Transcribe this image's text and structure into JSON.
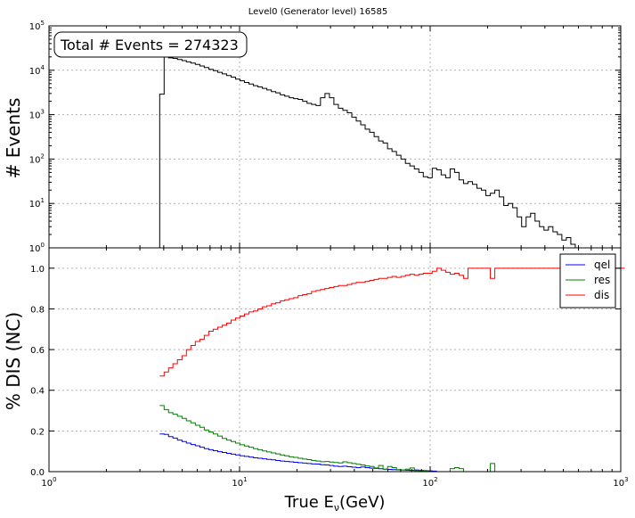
{
  "figure": {
    "title": "Level0 (Generator level) 16585",
    "annotation": "Total # Events = 274323"
  },
  "chart_data": [
    {
      "type": "line",
      "drawstyle": "steps",
      "xscale": "log",
      "yscale": "log",
      "xlim": [
        1,
        1000
      ],
      "ylim": [
        1,
        100000
      ],
      "grid": true,
      "xlabel": "",
      "ylabel": "# Events",
      "ytick_labels": [
        "10^0",
        "10^1",
        "10^2",
        "10^3",
        "10^4",
        "10^5"
      ],
      "series": [
        {
          "color": "#000000",
          "x": [
            3.81,
            4.02,
            4.24,
            4.47,
            4.72,
            4.99,
            5.26,
            5.55,
            5.86,
            6.19,
            6.53,
            6.89,
            7.27,
            7.68,
            8.11,
            8.55,
            9.03,
            9.53,
            10.06,
            10.61,
            11.2,
            11.83,
            12.48,
            13.17,
            13.9,
            14.68,
            15.49,
            16.35,
            17.26,
            18.22,
            19.22,
            20.29,
            21.42,
            22.6,
            23.86,
            25.18,
            26.58,
            28.05,
            29.61,
            31.25,
            32.99,
            34.82,
            36.75,
            38.79,
            40.94,
            43.21,
            45.61,
            48.14,
            50.81,
            53.63,
            56.61,
            59.75,
            63.06,
            66.56,
            70.26,
            74.15,
            78.27,
            82.61,
            87.19,
            92.03,
            97.14,
            102.53,
            108.22,
            114.22,
            120.56,
            127.25,
            134.31,
            141.76,
            149.63,
            157.93,
            166.7,
            175.95,
            185.71,
            196.01,
            206.89,
            218.37,
            230.49,
            243.28,
            256.78,
            271.02,
            286.06,
            301.94,
            318.69,
            336.37,
            355.04,
            374.74,
            395.54,
            417.48,
            440.65,
            465.1,
            490.91,
            518.15,
            546.9,
            577.25
          ],
          "y": [
            2900,
            21000,
            19000,
            18500,
            17500,
            16500,
            15500,
            14500,
            13500,
            12500,
            11500,
            10500,
            9800,
            9000,
            8300,
            7600,
            7000,
            6300,
            5800,
            5300,
            4900,
            4500,
            4200,
            3900,
            3600,
            3300,
            3100,
            2800,
            2600,
            2400,
            2300,
            2200,
            2000,
            1800,
            1700,
            1600,
            2400,
            3000,
            2400,
            1700,
            1400,
            1250,
            1100,
            880,
            720,
            590,
            470,
            400,
            320,
            255,
            230,
            170,
            148,
            122,
            100,
            80,
            70,
            60,
            50,
            40,
            38,
            62,
            57,
            44,
            38,
            60,
            50,
            34,
            28,
            31,
            27,
            22,
            20,
            15,
            17,
            20,
            14,
            9,
            10,
            8,
            5,
            3,
            5,
            6,
            4,
            3,
            2.5,
            3,
            2.3,
            2,
            1.5,
            1.7,
            1.2,
            1
          ]
        }
      ]
    },
    {
      "type": "line",
      "drawstyle": "steps",
      "xscale": "log",
      "xlim": [
        1,
        1000
      ],
      "ylim": [
        0,
        1.1
      ],
      "grid": true,
      "xlabel": "True E_ν(GeV)",
      "xlabel_main": "True E",
      "xlabel_sub": "ν",
      "xlabel_tail": "(GeV)",
      "ylabel": "% DIS (NC)",
      "xtick_labels": [
        "10^0",
        "10^1",
        "10^2",
        "10^3"
      ],
      "ytick_labels": [
        "0.0",
        "0.2",
        "0.4",
        "0.6",
        "0.8",
        "1.0"
      ],
      "legend_position": "top-right",
      "series": [
        {
          "name": "qel",
          "color": "#0000ff",
          "x": [
            3.81,
            4.02,
            4.24,
            4.47,
            4.72,
            4.99,
            5.26,
            5.55,
            5.86,
            6.19,
            6.53,
            6.89,
            7.27,
            7.68,
            8.11,
            8.55,
            9.03,
            9.53,
            10.06,
            10.61,
            11.2,
            11.83,
            12.48,
            13.17,
            13.9,
            14.68,
            15.49,
            16.35,
            17.26,
            18.22,
            19.22,
            20.29,
            21.42,
            22.6,
            23.86,
            25.18,
            26.58,
            28.05,
            29.61,
            31.25,
            32.99,
            34.82,
            36.75,
            38.79,
            40.94,
            43.21,
            45.61,
            48.14,
            50.81,
            53.63,
            56.61,
            59.75,
            63.06,
            66.56,
            70.26,
            74.15,
            78.27,
            82.61,
            87.19,
            92.03,
            97.14,
            102.53
          ],
          "y": [
            0.185,
            0.183,
            0.172,
            0.165,
            0.155,
            0.148,
            0.14,
            0.133,
            0.127,
            0.12,
            0.113,
            0.108,
            0.103,
            0.098,
            0.094,
            0.09,
            0.086,
            0.082,
            0.078,
            0.075,
            0.072,
            0.068,
            0.066,
            0.063,
            0.06,
            0.058,
            0.055,
            0.052,
            0.05,
            0.048,
            0.046,
            0.044,
            0.042,
            0.04,
            0.038,
            0.037,
            0.034,
            0.033,
            0.03,
            0.027,
            0.025,
            0.027,
            0.024,
            0.022,
            0.02,
            0.023,
            0.02,
            0.017,
            0.016,
            0.014,
            0.012,
            0.011,
            0.01,
            0.009,
            0.008,
            0.007,
            0.006,
            0.008,
            0.006,
            0.005,
            0.004,
            0.003
          ]
        },
        {
          "name": "res",
          "color": "#007f00",
          "x": [
            3.81,
            4.02,
            4.24,
            4.47,
            4.72,
            4.99,
            5.26,
            5.55,
            5.86,
            6.19,
            6.53,
            6.89,
            7.27,
            7.68,
            8.11,
            8.55,
            9.03,
            9.53,
            10.06,
            10.61,
            11.2,
            11.83,
            12.48,
            13.17,
            13.9,
            14.68,
            15.49,
            16.35,
            17.26,
            18.22,
            19.22,
            20.29,
            21.42,
            22.6,
            23.86,
            25.18,
            26.58,
            28.05,
            29.61,
            31.25,
            32.99,
            34.82,
            36.75,
            38.79,
            40.94,
            43.21,
            45.61,
            48.14,
            50.81,
            53.63,
            56.61,
            59.75,
            63.06,
            66.56,
            70.26,
            74.15,
            78.27,
            82.61,
            87.19,
            92.03,
            97.14,
            102.53,
            108.22,
            114.22,
            120.56,
            127.25,
            134.31,
            141.76,
            149.63,
            157.93,
            166.7,
            175.95,
            185.71,
            196.01,
            206.89,
            218.37,
            230.49
          ],
          "y": [
            0.325,
            0.305,
            0.29,
            0.282,
            0.272,
            0.262,
            0.25,
            0.24,
            0.228,
            0.218,
            0.205,
            0.195,
            0.185,
            0.175,
            0.163,
            0.155,
            0.148,
            0.14,
            0.132,
            0.126,
            0.12,
            0.113,
            0.108,
            0.102,
            0.097,
            0.092,
            0.087,
            0.082,
            0.078,
            0.073,
            0.07,
            0.066,
            0.062,
            0.059,
            0.055,
            0.052,
            0.049,
            0.05,
            0.047,
            0.045,
            0.043,
            0.048,
            0.044,
            0.04,
            0.036,
            0.033,
            0.028,
            0.025,
            0.018,
            0.03,
            0.012,
            0.025,
            0.02,
            0.01,
            0.008,
            0.012,
            0.018,
            0.005,
            0.004,
            0.003,
            0.0,
            0.0,
            0.0,
            0.0,
            0.0,
            0.015,
            0.02,
            0.015,
            0.0,
            0.0,
            0.0,
            0.0,
            0.0,
            0.0,
            0.04,
            0.0,
            0.0
          ]
        },
        {
          "name": "dis",
          "color": "#ff0000",
          "x": [
            3.81,
            4.02,
            4.24,
            4.47,
            4.72,
            4.99,
            5.26,
            5.55,
            5.86,
            6.19,
            6.53,
            6.89,
            7.27,
            7.68,
            8.11,
            8.55,
            9.03,
            9.53,
            10.06,
            10.61,
            11.2,
            11.83,
            12.48,
            13.17,
            13.9,
            14.68,
            15.49,
            16.35,
            17.26,
            18.22,
            19.22,
            20.29,
            21.42,
            22.6,
            23.86,
            25.18,
            26.58,
            28.05,
            29.61,
            31.25,
            32.99,
            34.82,
            36.75,
            38.79,
            40.94,
            43.21,
            45.61,
            48.14,
            50.81,
            53.63,
            56.61,
            59.75,
            63.06,
            66.56,
            70.26,
            74.15,
            78.27,
            82.61,
            87.19,
            92.03,
            97.14,
            102.53,
            108.22,
            114.22,
            120.56,
            127.25,
            134.31,
            141.76,
            149.63,
            157.93,
            166.7,
            175.95,
            185.71,
            196.01,
            206.89,
            218.37,
            230.49,
            243.28,
            256.78,
            271.02,
            286.06,
            301.94,
            318.69,
            336.37,
            355.04,
            374.74,
            395.54,
            417.48,
            440.65,
            465.1,
            490.91,
            518.15,
            546.9,
            577.25,
            609.28,
            643.09,
            678.78,
            716.44,
            756.2,
            798.16,
            842.45,
            889.2,
            938.54,
            990.62
          ],
          "y": [
            0.47,
            0.49,
            0.51,
            0.53,
            0.55,
            0.57,
            0.6,
            0.62,
            0.64,
            0.65,
            0.67,
            0.69,
            0.7,
            0.71,
            0.72,
            0.73,
            0.745,
            0.755,
            0.765,
            0.775,
            0.785,
            0.79,
            0.8,
            0.81,
            0.815,
            0.825,
            0.83,
            0.84,
            0.845,
            0.85,
            0.855,
            0.865,
            0.87,
            0.875,
            0.885,
            0.89,
            0.895,
            0.9,
            0.905,
            0.91,
            0.915,
            0.915,
            0.92,
            0.925,
            0.93,
            0.93,
            0.935,
            0.94,
            0.945,
            0.95,
            0.95,
            0.955,
            0.96,
            0.955,
            0.96,
            0.965,
            0.97,
            0.965,
            0.97,
            0.975,
            0.975,
            0.985,
            1.0,
            0.99,
            0.98,
            0.97,
            0.975,
            0.965,
            0.95,
            1.0,
            1.0,
            1.0,
            1.0,
            1.0,
            0.95,
            1.0,
            1.0,
            1.0,
            1.0,
            1.0,
            1.0,
            1.0,
            1.0,
            1.0,
            1.0,
            1.0,
            1.0,
            1.0,
            1.0,
            1.0,
            1.0,
            1.0,
            1.0,
            1.0,
            1.0,
            1.0,
            1.0,
            1.0,
            1.0,
            1.0,
            1.0,
            1.0,
            1.0,
            1.0
          ]
        }
      ]
    }
  ]
}
